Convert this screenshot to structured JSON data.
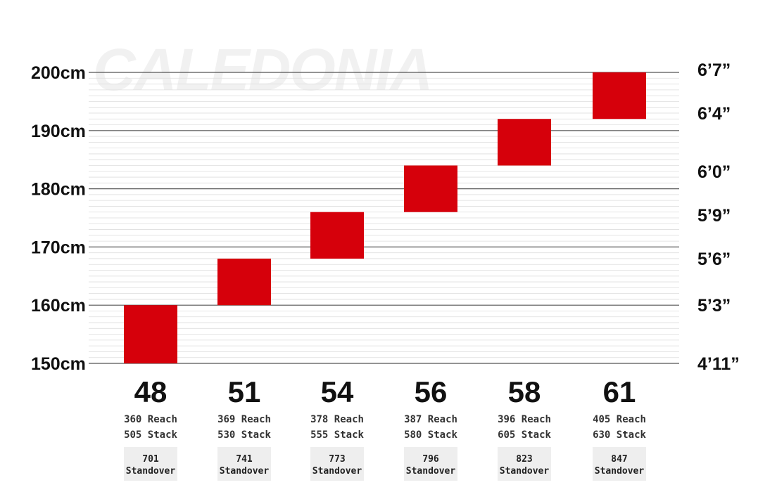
{
  "watermark": "CALEDONIA",
  "colors": {
    "bar": "#d6000b",
    "major_grid": "#555555",
    "minor_grid": "#dedede",
    "standover_bg": "#eeeeee",
    "text": "#111111"
  },
  "chart_data": {
    "type": "bar",
    "chart_subtype": "floating-range",
    "y_unit": "cm",
    "ylim": [
      150,
      200
    ],
    "y_ticks_left": [
      "150cm",
      "160cm",
      "170cm",
      "180cm",
      "190cm",
      "200cm"
    ],
    "y_ticks_left_values": [
      150,
      160,
      170,
      180,
      190,
      200
    ],
    "y_ticks_right": [
      "4’11”",
      "5’3”",
      "5’6”",
      "5’9”",
      "6’0”",
      "6’4”",
      "6’7”"
    ],
    "y_ticks_right_values": [
      150,
      160,
      168,
      175.5,
      183,
      193,
      200.5
    ],
    "categories": [
      "48",
      "51",
      "54",
      "56",
      "58",
      "61"
    ],
    "ranges": [
      {
        "low": 150,
        "high": 160
      },
      {
        "low": 160,
        "high": 168
      },
      {
        "low": 168,
        "high": 176
      },
      {
        "low": 176,
        "high": 184
      },
      {
        "low": 184,
        "high": 192
      },
      {
        "low": 192,
        "high": 200
      }
    ],
    "reach": [
      "360",
      "369",
      "378",
      "387",
      "396",
      "405"
    ],
    "stack": [
      "505",
      "530",
      "555",
      "580",
      "605",
      "630"
    ],
    "standover": [
      "701",
      "741",
      "773",
      "796",
      "823",
      "847"
    ],
    "reach_label": "Reach",
    "stack_label": "Stack",
    "standover_label": "Standover",
    "grid": true,
    "legend": "none"
  }
}
